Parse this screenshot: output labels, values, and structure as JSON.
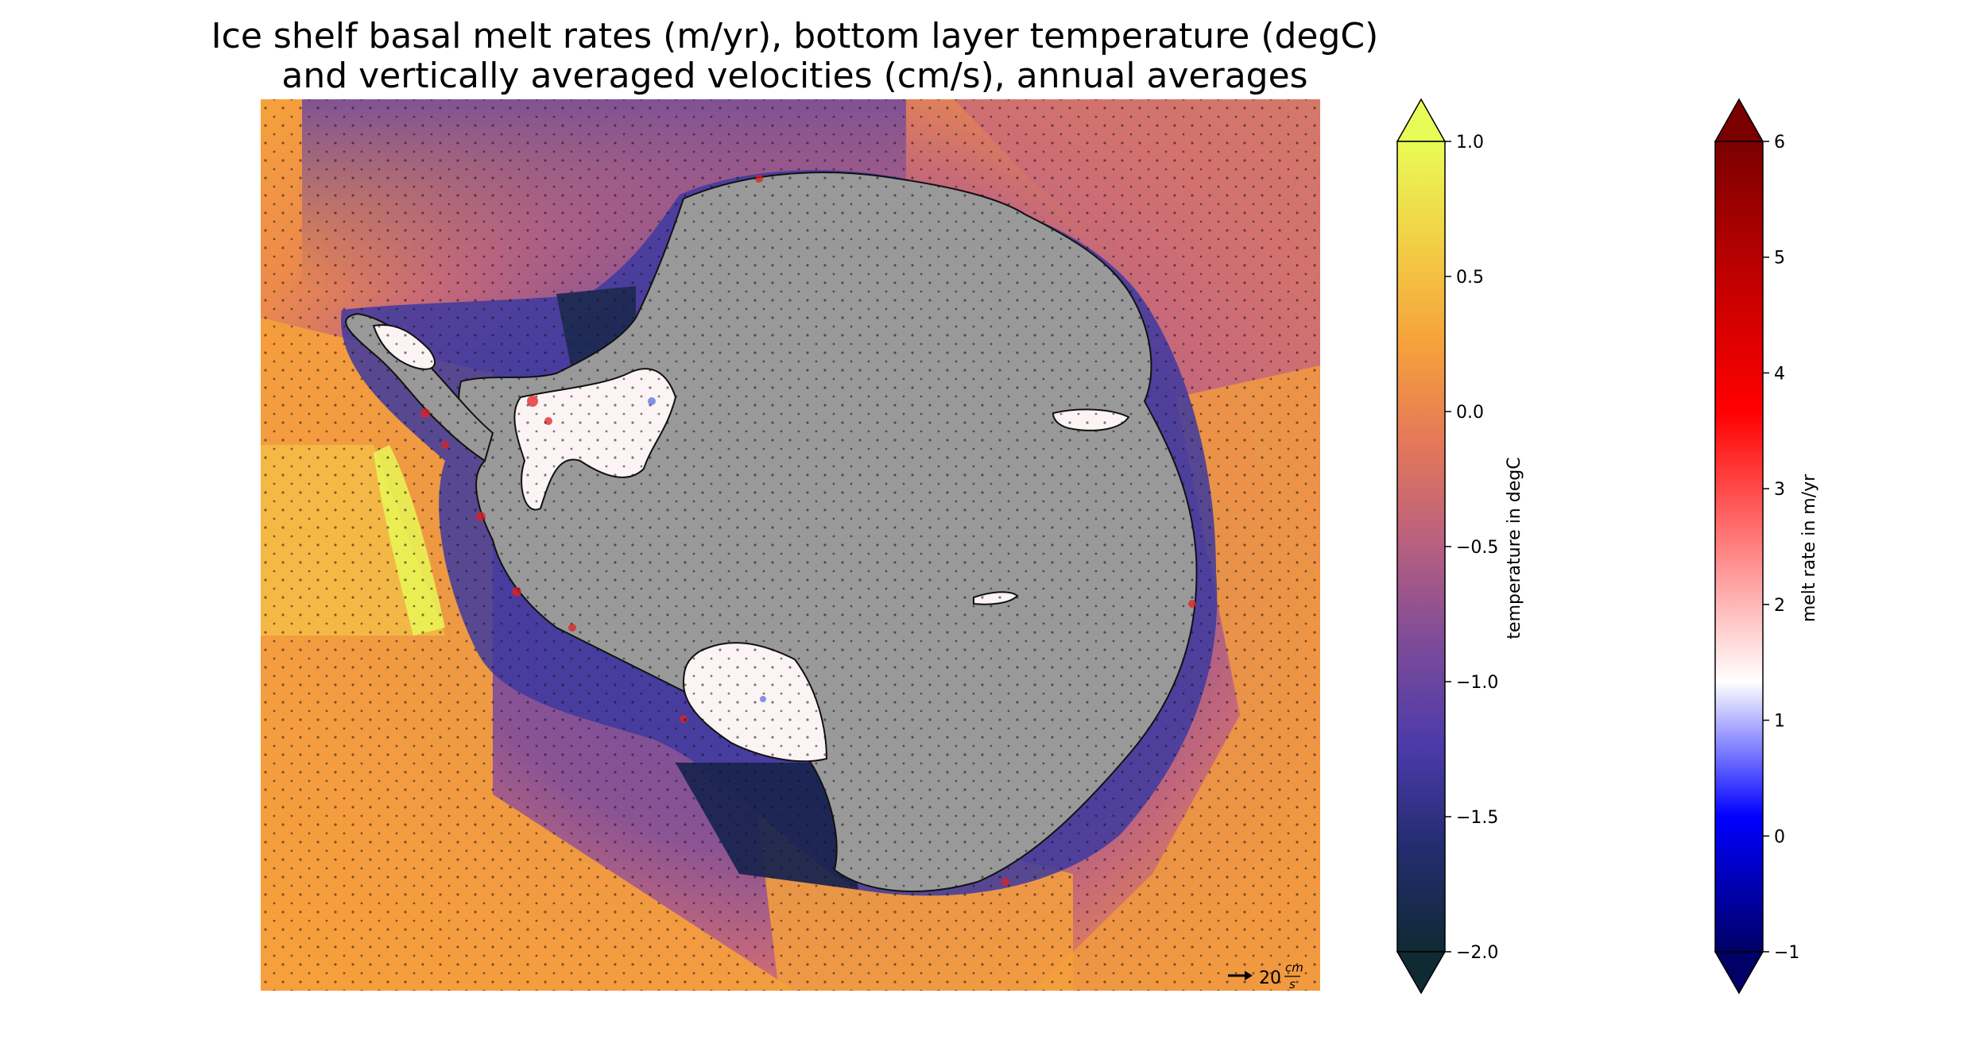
{
  "title_line1": "Ice shelf basal melt rates (m/yr), bottom layer temperature (degC)",
  "title_line2": "and vertically averaged velocities (cm/s), annual averages",
  "chart_data": {
    "type": "heatmap",
    "description_of_fields": [
      "bottom layer temperature (ocean)",
      "ice shelf basal melt rate (ice shelves)",
      "vertically averaged velocity vectors (quiver)"
    ],
    "quiver_key": {
      "value": 20,
      "unit": "cm/s",
      "label_number": "20",
      "label_unit_top": "cm",
      "label_unit_bottom": "s"
    },
    "colorbars": [
      {
        "name": "temperature",
        "label": "temperature in degC",
        "range": [
          -2.0,
          1.0
        ],
        "extend": "both",
        "ticks": [
          -2.0,
          -1.5,
          -1.0,
          -0.5,
          0.0,
          0.5,
          1.0
        ],
        "tick_labels": [
          "−2.0",
          "−1.5",
          "−1.0",
          "−0.5",
          "0.0",
          "0.5",
          "1.0"
        ],
        "colors": [
          "#0f2a33",
          "#232c6e",
          "#4a3aa8",
          "#7b4a9a",
          "#b65f80",
          "#e4775a",
          "#f6a13c",
          "#f2cf45",
          "#e9fb56"
        ]
      },
      {
        "name": "melt rate",
        "label": "melt rate in m/yr",
        "range": [
          -1,
          6
        ],
        "extend": "both",
        "ticks": [
          -1,
          0,
          1,
          2,
          3,
          4,
          5,
          6
        ],
        "tick_labels": [
          "−1",
          "0",
          "1",
          "2",
          "3",
          "4",
          "5",
          "6"
        ],
        "colors": [
          "#000066",
          "#0000ff",
          "#ffffff",
          "#ff8080",
          "#ff0000",
          "#c00000",
          "#7a0000"
        ]
      }
    ],
    "land_color": "#999999"
  }
}
